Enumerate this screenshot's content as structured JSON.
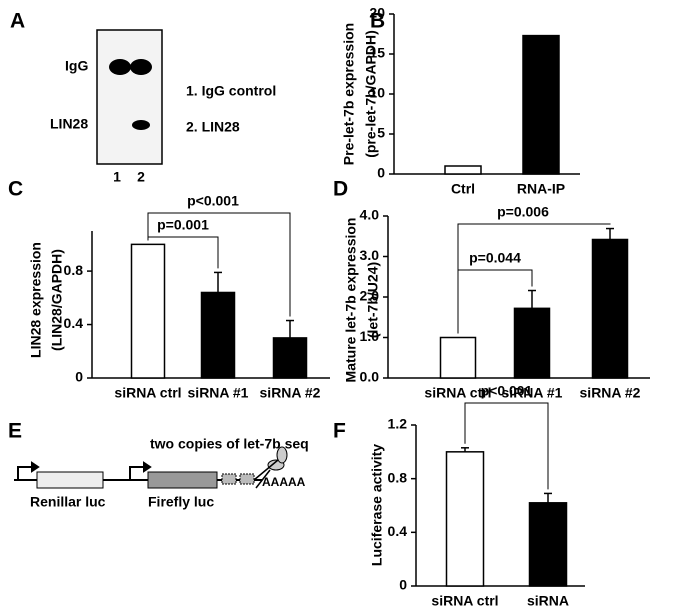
{
  "panels": [
    "A",
    "B",
    "C",
    "D",
    "E",
    "F"
  ],
  "blot": {
    "lanes": [
      "1",
      "2"
    ],
    "bands": [
      "IgG",
      "LIN28"
    ],
    "legend": [
      "1. IgG control",
      "2. LIN28"
    ]
  },
  "diagram": {
    "boxes": [
      "Renillar luc",
      "Firefly luc"
    ],
    "insert_label": "two copies of let-7b seq",
    "polya": "AAAAA"
  },
  "chart_data": [
    {
      "type": "bar",
      "ylabel": [
        "Pre-let-7b expression",
        "(pre-let-7b/GAPDH)"
      ],
      "categories": [
        "Ctrl",
        "RNA-IP"
      ],
      "values": [
        1,
        17.3
      ],
      "colors": [
        "#ffffff",
        "#000000"
      ],
      "ylim": [
        0,
        20
      ],
      "yticks": [
        0,
        5,
        10,
        15,
        20
      ]
    },
    {
      "type": "bar",
      "ylabel": [
        "LIN28 expression",
        "(LIN28/GAPDH)"
      ],
      "categories": [
        "siRNA ctrl",
        "siRNA #1",
        "siRNA #2"
      ],
      "values": [
        1.0,
        0.64,
        0.3
      ],
      "errors": [
        null,
        0.15,
        0.13
      ],
      "colors": [
        "#ffffff",
        "#000000",
        "#000000"
      ],
      "ylim": [
        0,
        1.1
      ],
      "yticks": [
        0,
        0.4,
        0.8
      ],
      "significance": [
        {
          "from": 0,
          "to": 1,
          "label": "p=0.001"
        },
        {
          "from": 0,
          "to": 2,
          "label": "p<0.001"
        }
      ]
    },
    {
      "type": "bar",
      "ylabel": [
        "Mature let-7b expression",
        "(let-7b/U24)"
      ],
      "categories": [
        "siRNA ctrl",
        "siRNA #1",
        "siRNA #2"
      ],
      "values": [
        1.0,
        1.72,
        3.42
      ],
      "errors": [
        null,
        0.44,
        0.27
      ],
      "colors": [
        "#ffffff",
        "#000000",
        "#000000"
      ],
      "ylim": [
        0,
        4
      ],
      "yticks": [
        {
          "value": 0,
          "label": "0.0"
        },
        {
          "value": 1,
          "label": "1.0"
        },
        {
          "value": 2,
          "label": "2.0"
        },
        {
          "value": 3,
          "label": "3.0"
        },
        {
          "value": 4,
          "label": "4.0"
        }
      ],
      "significance": [
        {
          "from": 0,
          "to": 1,
          "label": "p=0.044"
        },
        {
          "from": 0,
          "to": 2,
          "label": "p=0.006"
        }
      ]
    },
    {
      "type": "bar",
      "ylabel": [
        "Luciferase activity"
      ],
      "categories": [
        "siRNA ctrl",
        "siRNA"
      ],
      "values": [
        1.0,
        0.62
      ],
      "errors": [
        0.03,
        0.07
      ],
      "colors": [
        "#ffffff",
        "#000000"
      ],
      "ylim": [
        0,
        1.2
      ],
      "yticks": [
        0,
        0.4,
        0.8,
        1.2
      ],
      "significance": [
        {
          "from": 0,
          "to": 1,
          "label": "p<0.001"
        }
      ]
    }
  ]
}
